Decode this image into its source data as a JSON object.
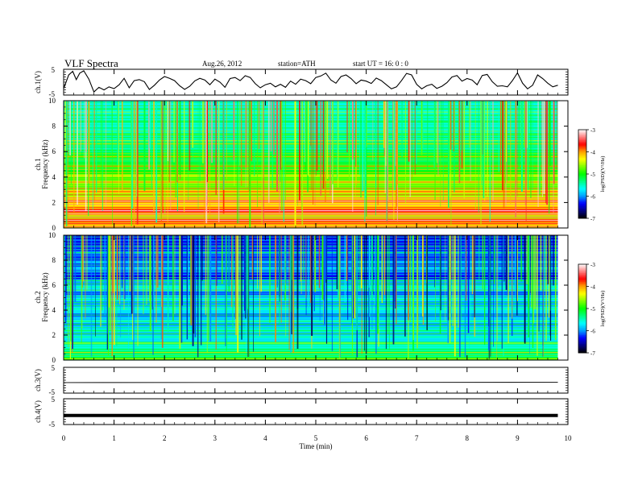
{
  "header": {
    "title": "VLF  Spectra",
    "date": "Aug.26, 2012",
    "station": "station=ATH",
    "start": "start  UT  =   16: 0   : 0"
  },
  "chart_data": [
    {
      "type": "line",
      "id": "ch1-waveform",
      "ylabel": "ch.1(V)",
      "yticks": [
        "5",
        "-5"
      ],
      "ylim": [
        -5,
        5
      ],
      "x": [
        0,
        0.1,
        0.18,
        0.25,
        0.32,
        0.4,
        0.5,
        0.6,
        0.7,
        0.8,
        0.9,
        1.0,
        1.1,
        1.2,
        1.3,
        1.4,
        1.5,
        1.6,
        1.7,
        1.8,
        1.9,
        2.0,
        2.1,
        2.2,
        2.3,
        2.4,
        2.5,
        2.6,
        2.7,
        2.8,
        2.9,
        3.0,
        3.1,
        3.2,
        3.3,
        3.4,
        3.5,
        3.6,
        3.7,
        3.8,
        3.9,
        4.0,
        4.1,
        4.2,
        4.3,
        4.4,
        4.5,
        4.6,
        4.7,
        4.8,
        4.9,
        5.0,
        5.1,
        5.2,
        5.3,
        5.4,
        5.5,
        5.6,
        5.7,
        5.8,
        5.9,
        6.0,
        6.1,
        6.2,
        6.3,
        6.4,
        6.5,
        6.6,
        6.7,
        6.8,
        6.9,
        7.0,
        7.1,
        7.2,
        7.3,
        7.4,
        7.5,
        7.6,
        7.7,
        7.8,
        7.9,
        8.0,
        8.1,
        8.2,
        8.3,
        8.4,
        8.5,
        8.6,
        8.7,
        8.8,
        8.9,
        9.0,
        9.1,
        9.2,
        9.3,
        9.4,
        9.5,
        9.6,
        9.7,
        9.8
      ],
      "values": [
        -2.5,
        2.8,
        4.2,
        1.0,
        3.5,
        4.4,
        1.2,
        -3.8,
        -2.0,
        -3.0,
        -1.8,
        -2.5,
        -1.0,
        1.5,
        -2.2,
        0.6,
        1.0,
        0.2,
        -2.8,
        -1.2,
        0.8,
        2.2,
        1.5,
        0.6,
        -1.4,
        -2.8,
        -1.6,
        0.5,
        1.5,
        0.8,
        -1.0,
        1.2,
        0.0,
        -2.0,
        1.4,
        1.8,
        0.6,
        2.5,
        1.8,
        -0.6,
        -2.2,
        -1.0,
        -0.4,
        -1.8,
        -0.8,
        -2.0,
        0.4,
        -0.8,
        1.2,
        0.6,
        -0.6,
        1.8,
        2.4,
        3.5,
        0.8,
        -0.4,
        2.2,
        2.8,
        1.4,
        -0.6,
        0.8,
        0.4,
        -0.5,
        1.6,
        0.6,
        -1.0,
        -2.6,
        -1.8,
        0.6,
        3.4,
        2.8,
        -0.8,
        -2.6,
        -1.4,
        -0.8,
        -2.4,
        -1.6,
        -0.2,
        2.0,
        2.6,
        0.4,
        1.4,
        0.8,
        -1.0,
        2.6,
        3.0,
        0.2,
        -1.6,
        -1.4,
        -1.8,
        0.6,
        3.6,
        -0.4,
        -2.6,
        -1.2,
        2.8,
        1.4,
        -0.4,
        -1.8,
        -1.2
      ]
    },
    {
      "type": "heatmap",
      "id": "ch1-spectrogram",
      "ylabel_line1": "ch.1",
      "ylabel_line2": "Frequency  (kHz)",
      "yticks": [
        "10",
        "8",
        "6",
        "4",
        "2",
        "0"
      ],
      "ylim": [
        0,
        10
      ],
      "colorbar_label": "log(PSD)(V²/Hz)",
      "colorbar_ticks": [
        "-3",
        "-4",
        "-5",
        "-6",
        "-7"
      ],
      "colorbar_range": [
        -7,
        -3
      ],
      "band_levels": [
        -4.2,
        -4.0,
        -3.8,
        -4.5,
        -4.0,
        -3.6,
        -4.1,
        -4.3,
        -3.9,
        -4.4,
        -4.6,
        -4.2,
        -4.7,
        -4.8,
        -4.5,
        -4.9,
        -4.6,
        -5.0,
        -5.1,
        -4.8,
        -5.2,
        -5.3,
        -4.9,
        -5.2,
        -5.4,
        -5.5,
        -5.2,
        -5.4,
        -5.5,
        -5.3,
        -5.6,
        -5.5,
        -5.6,
        -5.4,
        -5.6,
        -5.5,
        -5.6,
        -5.5,
        -5.7,
        -5.6
      ]
    },
    {
      "type": "heatmap",
      "id": "ch2-spectrogram",
      "ylabel_line1": "ch.2",
      "ylabel_line2": "Frequency  (kHz)",
      "yticks": [
        "10",
        "8",
        "6",
        "4",
        "2",
        "0"
      ],
      "ylim": [
        0,
        10
      ],
      "colorbar_label": "log(PSD)(V²/Hz)",
      "colorbar_ticks": [
        "-3",
        "-4",
        "-5",
        "-6",
        "-7"
      ],
      "colorbar_range": [
        -7,
        -3
      ],
      "band_levels": [
        -5.0,
        -5.4,
        -5.2,
        -5.5,
        -5.6,
        -5.3,
        -5.8,
        -5.6,
        -5.9,
        -5.5,
        -5.8,
        -6.0,
        -5.7,
        -5.9,
        -6.1,
        -5.8,
        -5.6,
        -5.9,
        -6.0,
        -5.7,
        -5.9,
        -6.2,
        -5.8,
        -5.6,
        -6.0,
        -5.9,
        -6.4,
        -6.3,
        -6.1,
        -5.9,
        -6.2,
        -6.0,
        -6.3,
        -6.2,
        -6.0,
        -6.3,
        -6.2,
        -6.4,
        -6.3,
        -6.5
      ]
    },
    {
      "type": "line",
      "id": "ch3-waveform",
      "ylabel": "ch.3(V)",
      "yticks": [
        "5",
        "-5"
      ],
      "ylim": [
        -5,
        5
      ],
      "x": [
        0,
        9.8
      ],
      "values": [
        -0.9,
        -0.8
      ]
    },
    {
      "type": "line",
      "id": "ch4-waveform",
      "ylabel": "ch.4(V)",
      "yticks": [
        "5",
        "-5"
      ],
      "ylim": [
        -5,
        5
      ],
      "x": [
        0,
        9.8
      ],
      "values": [
        -1.5,
        -1.5
      ]
    }
  ],
  "xaxis": {
    "label": "Time  (min)",
    "ticks": [
      "0",
      "1",
      "2",
      "3",
      "4",
      "5",
      "6",
      "7",
      "8",
      "9",
      "10"
    ],
    "range": [
      0,
      10
    ],
    "data_end": 9.8
  },
  "colors": {
    "frame": "#000000",
    "trace": "#000000",
    "colormap": [
      "#000000",
      "#000080",
      "#0000ff",
      "#00a0ff",
      "#00ffff",
      "#00ff80",
      "#00ff00",
      "#80ff00",
      "#ffff00",
      "#ffa000",
      "#ff0000",
      "#ff8080",
      "#ffffff"
    ]
  }
}
